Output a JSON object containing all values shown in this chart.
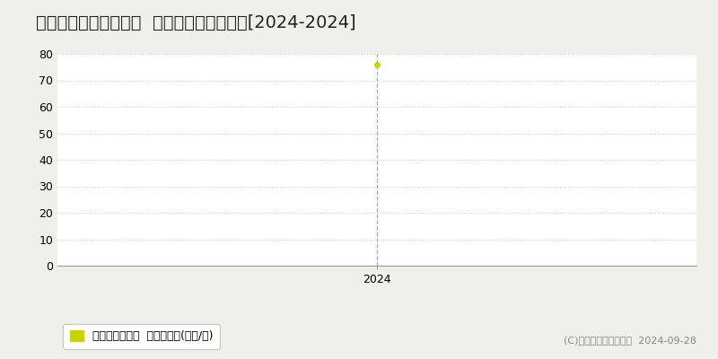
{
  "title": "京都市北区紫野宮東町  マンション価格推移[2024-2024]",
  "x_data": [
    2024
  ],
  "y_data": [
    76
  ],
  "ylim": [
    0,
    80
  ],
  "yticks": [
    0,
    10,
    20,
    30,
    40,
    50,
    60,
    70,
    80
  ],
  "xlim": [
    2023.3,
    2024.7
  ],
  "xticks": [
    2024
  ],
  "line_color": "#c8d400",
  "marker_color": "#c8d400",
  "vline_color": "#aaaaaa",
  "grid_color": "#cccccc",
  "background_color": "#f0f0eb",
  "plot_bg_color": "#ffffff",
  "legend_label": "マンション価格  平均坪単価(万円/坪)",
  "copyright_text": "(C)土地価格ドットコム  2024-09-28",
  "title_fontsize": 14,
  "tick_fontsize": 9,
  "legend_fontsize": 9,
  "copyright_fontsize": 8
}
